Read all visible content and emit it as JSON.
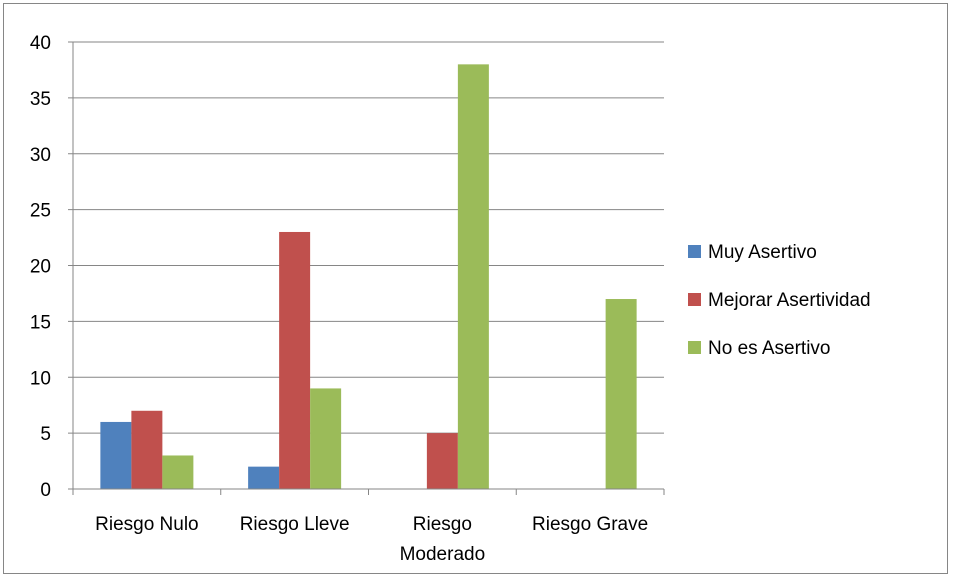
{
  "chart_data": {
    "type": "bar",
    "categories": [
      [
        "Riesgo Nulo"
      ],
      [
        "Riesgo Lleve"
      ],
      [
        "Riesgo",
        "Moderado"
      ],
      [
        "Riesgo Grave"
      ]
    ],
    "series": [
      {
        "name": "Muy Asertivo",
        "color": "#4F81BD",
        "values": [
          6,
          2,
          0,
          0
        ]
      },
      {
        "name": "Mejorar Asertividad",
        "color": "#C0504D",
        "values": [
          7,
          23,
          5,
          0
        ]
      },
      {
        "name": "No es Asertivo",
        "color": "#9BBB59",
        "values": [
          3,
          9,
          38,
          17
        ]
      }
    ],
    "yticks": [
      "0",
      "5",
      "10",
      "15",
      "20",
      "25",
      "30",
      "35",
      "40"
    ],
    "ylim": [
      0,
      40
    ],
    "title": "",
    "xlabel": "",
    "ylabel": "",
    "grid": "horizontal",
    "legend_position": "right"
  }
}
